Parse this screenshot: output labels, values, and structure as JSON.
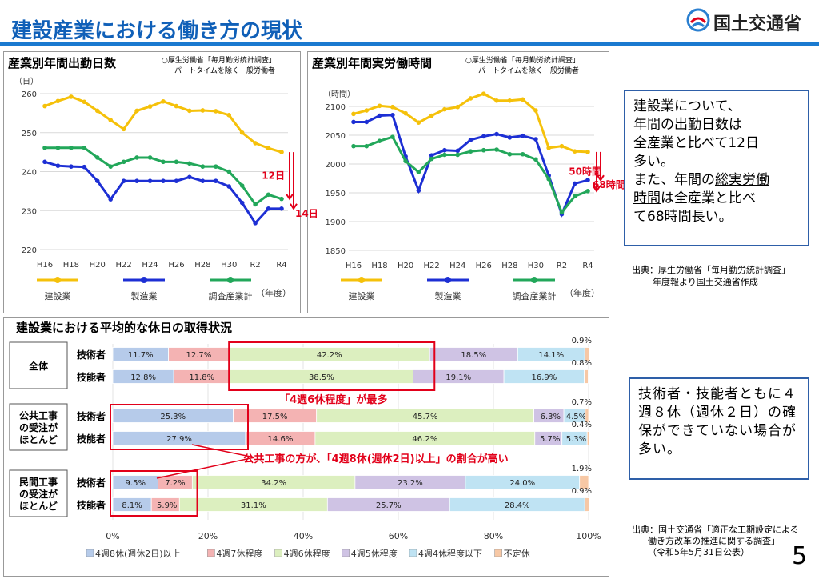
{
  "header": {
    "title": "建設産業における働き方の現状",
    "logo_text": "国土交通省"
  },
  "colors": {
    "construction": "#f5c10a",
    "manufacturing": "#1d2fd4",
    "all_industries": "#22a75a",
    "accent_red": "#e2001a",
    "header_blue": "#1060b8"
  },
  "chart_data": [
    {
      "type": "line",
      "title": "産業別年間出勤日数",
      "source_note": [
        "○厚生労働省「毎月勤労統計調査」",
        "パートタイムを除く一般労働者"
      ],
      "ylabel": "（日）",
      "xlabel": "（年度）",
      "ylim": [
        220,
        260
      ],
      "yticks": [
        "220",
        "230",
        "240",
        "250",
        "260"
      ],
      "x_tick_labels": [
        "H16",
        "H18",
        "H20",
        "H22",
        "H24",
        "H26",
        "H28",
        "H30",
        "R2",
        "R4"
      ],
      "series": [
        {
          "name": "建設業",
          "color": "#f5c10a",
          "values": [
            256.8,
            258.1,
            259.2,
            257.9,
            255.6,
            253.2,
            250.9,
            255.6,
            256.7,
            258.0,
            256.8,
            255.6,
            255.7,
            255.5,
            254.5,
            250.0,
            247.3,
            246.0,
            245.0
          ]
        },
        {
          "name": "製造業",
          "color": "#1d2fd4",
          "values": [
            242.5,
            241.5,
            241.3,
            241.2,
            237.6,
            232.9,
            237.6,
            237.6,
            237.6,
            237.6,
            237.6,
            238.6,
            237.6,
            237.6,
            236.2,
            232.0,
            226.8,
            230.5,
            230.5
          ]
        },
        {
          "name": "調査産業計",
          "color": "#22a75a",
          "values": [
            246.1,
            246.1,
            246.1,
            246.1,
            243.6,
            241.3,
            242.5,
            243.6,
            243.6,
            242.5,
            242.5,
            242.1,
            241.3,
            241.3,
            240.0,
            236.4,
            231.6,
            234.1,
            233.0
          ]
        }
      ],
      "diff_labels": [
        "12日",
        "14日"
      ]
    },
    {
      "type": "line",
      "title": "産業別年間実労働時間",
      "source_note": [
        "○厚生労働省「毎月勤労統計調査」",
        "パートタイムを除く一般労働者"
      ],
      "ylabel": "（時間）",
      "xlabel": "（年度）",
      "ylim": [
        1850,
        2100
      ],
      "yticks": [
        "1850",
        "1900",
        "1950",
        "2000",
        "2050",
        "2100"
      ],
      "x_tick_labels": [
        "H16",
        "H18",
        "H20",
        "H22",
        "H24",
        "H26",
        "H28",
        "H30",
        "R2",
        "R4"
      ],
      "series": [
        {
          "name": "建設業",
          "color": "#f5c10a",
          "values": [
            2087,
            2093,
            2101,
            2099,
            2088,
            2072,
            2084,
            2095,
            2099,
            2114,
            2122,
            2110,
            2110,
            2112,
            2093,
            2028,
            2031,
            2022,
            2021
          ]
        },
        {
          "name": "製造業",
          "color": "#1d2fd4",
          "values": [
            2073,
            2073,
            2084,
            2085,
            2013,
            1954,
            2015,
            2024,
            2023,
            2042,
            2048,
            2052,
            2046,
            2049,
            2043,
            1980,
            1913,
            1966,
            1972
          ]
        },
        {
          "name": "調査産業計",
          "color": "#22a75a",
          "values": [
            2031,
            2031,
            2040,
            2047,
            2005,
            1986,
            2009,
            2016,
            2016,
            2022,
            2024,
            2025,
            2017,
            2017,
            2008,
            1974,
            1916,
            1944,
            1953
          ]
        }
      ],
      "diff_labels": [
        "50時間",
        "68時間"
      ]
    },
    {
      "type": "bar",
      "subtype": "stacked-horizontal-percent",
      "title": "建設業における平均的な休日の取得状況",
      "xlim": [
        0,
        100
      ],
      "x_ticks": [
        "0%",
        "20%",
        "40%",
        "60%",
        "80%",
        "100%"
      ],
      "categories_legend": [
        "4週8休(週休2日)以上",
        "4週7休程度",
        "4週6休程度",
        "4週5休程度",
        "4週4休程度以下",
        "不定休"
      ],
      "category_colors": [
        "#b6cbea",
        "#f4b3b3",
        "#dcefbf",
        "#cfc3e4",
        "#bfe3f3",
        "#f7c8a5"
      ],
      "groups": [
        {
          "label": "全体",
          "rows": [
            {
              "label": "技術者",
              "values": [
                11.7,
                12.7,
                42.2,
                18.5,
                14.1,
                0.9
              ],
              "labels": [
                "11.7%",
                "12.7%",
                "42.2%",
                "18.5%",
                "14.1%",
                "0.9%"
              ]
            },
            {
              "label": "技能者",
              "values": [
                12.8,
                11.8,
                38.5,
                19.1,
                16.9,
                0.8
              ],
              "labels": [
                "12.8%",
                "11.8%",
                "38.5%",
                "19.1%",
                "16.9%",
                "0.8%"
              ]
            }
          ]
        },
        {
          "label": "公共工事の受注がほとんど",
          "label_lines": [
            "公共工事",
            "の受注が",
            "ほとんど"
          ],
          "rows": [
            {
              "label": "技術者",
              "values": [
                25.3,
                17.5,
                45.7,
                6.3,
                4.5,
                0.7
              ],
              "labels": [
                "25.3%",
                "17.5%",
                "45.7%",
                "6.3%",
                "4.5%",
                "0.7%"
              ]
            },
            {
              "label": "技能者",
              "values": [
                27.9,
                14.6,
                46.2,
                5.7,
                5.3,
                0.4
              ],
              "labels": [
                "27.9%",
                "14.6%",
                "46.2%",
                "5.7%",
                "5.3%",
                "0.4%"
              ]
            }
          ]
        },
        {
          "label": "民間工事の受注がほとんど",
          "label_lines": [
            "民間工事",
            "の受注が",
            "ほとんど"
          ],
          "rows": [
            {
              "label": "技術者",
              "values": [
                9.5,
                7.2,
                34.2,
                23.2,
                24.0,
                1.9
              ],
              "labels": [
                "9.5%",
                "7.2%",
                "34.2%",
                "23.2%",
                "24.0%",
                "1.9%"
              ]
            },
            {
              "label": "技能者",
              "values": [
                8.1,
                5.9,
                31.1,
                25.7,
                28.4,
                0.9
              ],
              "labels": [
                "8.1%",
                "5.9%",
                "31.1%",
                "25.7%",
                "28.4%",
                "0.9%"
              ]
            }
          ]
        }
      ],
      "annotations": [
        "「4週6休程度」が最多",
        "公共工事の方が、「4週8休(週休2日)以上」の割合が高い"
      ]
    }
  ],
  "callout1": {
    "line1": "建設業について、",
    "line2_pre": "年間の",
    "line2_u": "出勤日数",
    "line2_post": "は",
    "line3": "全産業と比べて12日",
    "line4": "多い。",
    "line5": "また、年間の",
    "line5_u": "総実労働",
    "line6_u": "時間",
    "line6_post": "は全産業と比べ",
    "line7_pre": "て",
    "line7_u": "68時間長い",
    "line7_post": "。"
  },
  "source1": {
    "line1": "出典：厚生労働省「毎月勤労統計調査」",
    "line2": "年度報より国土交通省作成"
  },
  "callout2": {
    "text": "技術者・技能者ともに４週８休（週休２日）の確保ができていない場合が多い。"
  },
  "source2": {
    "line1": "出典：国土交通省「適正な工期設定による",
    "line2": "働き方改革の推進に関する調査」",
    "line3": "（令和5年5月31日公表）"
  },
  "page_number": "5"
}
